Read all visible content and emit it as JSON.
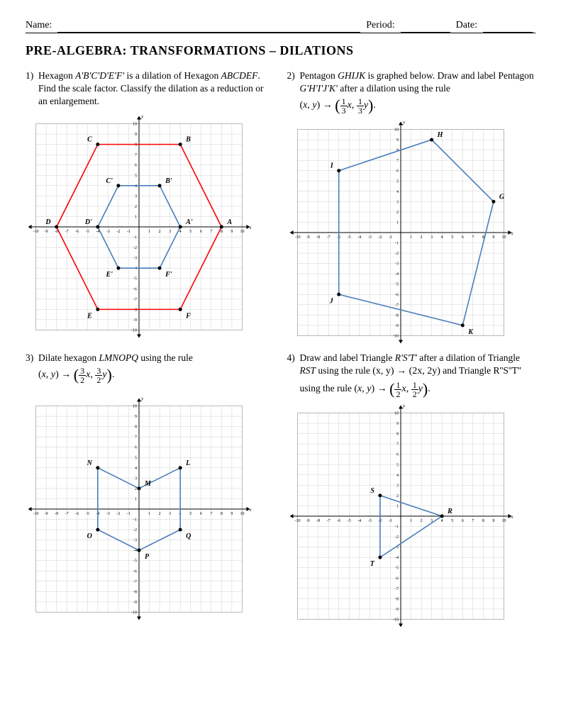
{
  "header": {
    "name_label": "Name:",
    "period_label": "Period:",
    "date_label": "Date:"
  },
  "title": "PRE-ALGEBRA: TRANSFORMATIONS – DILATIONS",
  "p1": {
    "num": "1)",
    "text_a": "Hexagon ",
    "hex_prime": "A'B'C'D'E'F'",
    "text_b": " is a dilation of Hexagon ",
    "hex": "ABCDEF",
    "text_c": ".  Find the scale factor.  Classify the dilation as a reduction or an enlargement.",
    "outer_color": "#ff0000",
    "inner_color": "#4a7ebb",
    "outer_pts": [
      [
        8,
        0
      ],
      [
        4,
        8
      ],
      [
        -4,
        8
      ],
      [
        -8,
        0
      ],
      [
        -4,
        -8
      ],
      [
        4,
        -8
      ]
    ],
    "inner_pts": [
      [
        4,
        0
      ],
      [
        2,
        4
      ],
      [
        -2,
        4
      ],
      [
        -4,
        0
      ],
      [
        -2,
        -4
      ],
      [
        2,
        -4
      ]
    ],
    "outer_labels": {
      "A": [
        8,
        0
      ],
      "B": [
        4,
        8
      ],
      "C": [
        -4,
        8
      ],
      "D": [
        -8,
        0
      ],
      "E": [
        -4,
        -8
      ],
      "F": [
        4,
        -8
      ]
    },
    "inner_labels": {
      "A'": [
        4,
        0
      ],
      "B'": [
        2,
        4
      ],
      "C'": [
        -2,
        4
      ],
      "D'": [
        -4,
        0
      ],
      "E'": [
        -2,
        -4
      ],
      "F'": [
        2,
        -4
      ]
    }
  },
  "p2": {
    "num": "2)",
    "text_a": "Pentagon ",
    "pent": "GHIJK",
    "text_b": " is graphed below. Draw and label Pentagon ",
    "pent_prime": "G'H'I'J'K'",
    "text_c": " after a dilation using the rule",
    "rule_n": "1",
    "rule_d": "3",
    "color": "#4a7ebb",
    "pts": [
      [
        9,
        3
      ],
      [
        3,
        9
      ],
      [
        -6,
        6
      ],
      [
        -6,
        -6
      ],
      [
        6,
        -9
      ]
    ],
    "labels": {
      "G": [
        9,
        3
      ],
      "H": [
        3,
        9
      ],
      "I": [
        -6,
        6
      ],
      "J": [
        -6,
        -6
      ],
      "K": [
        6,
        -9
      ]
    }
  },
  "p3": {
    "num": "3)",
    "text_a": "Dilate hexagon ",
    "hex": "LMNOPQ",
    "text_b": " using the rule",
    "rule_n": "3",
    "rule_d": "2",
    "color": "#4a7ebb",
    "pts": [
      [
        4,
        4
      ],
      [
        0,
        2
      ],
      [
        -4,
        4
      ],
      [
        -4,
        -2
      ],
      [
        0,
        -4
      ],
      [
        4,
        -2
      ]
    ],
    "labels": {
      "L": [
        4,
        4
      ],
      "M": [
        0,
        2
      ],
      "N": [
        -4,
        4
      ],
      "O": [
        -4,
        -2
      ],
      "P": [
        0,
        -4
      ],
      "Q": [
        4,
        -2
      ]
    }
  },
  "p4": {
    "num": "4)",
    "text_a": "Draw and label Triangle ",
    "tri_prime": "R'S'T'",
    "text_b": " after a dilation of Triangle ",
    "tri": "RST",
    "text_c": " using the rule ",
    "rule1": "(x, y) → (2x, 2y)",
    "text_d": " and Triangle R''S''T'' using the rule ",
    "rule2_n": "1",
    "rule2_d": "2",
    "color": "#4a7ebb",
    "pts": [
      [
        4,
        0
      ],
      [
        -2,
        2
      ],
      [
        -2,
        -4
      ]
    ],
    "labels": {
      "R": [
        4,
        0
      ],
      "S": [
        -2,
        2
      ],
      "T": [
        -2,
        -4
      ]
    }
  },
  "grid": {
    "size": 320,
    "range": 10,
    "axis_color": "#000",
    "grid_color": "#d0d0d0",
    "tick_font": 6
  }
}
